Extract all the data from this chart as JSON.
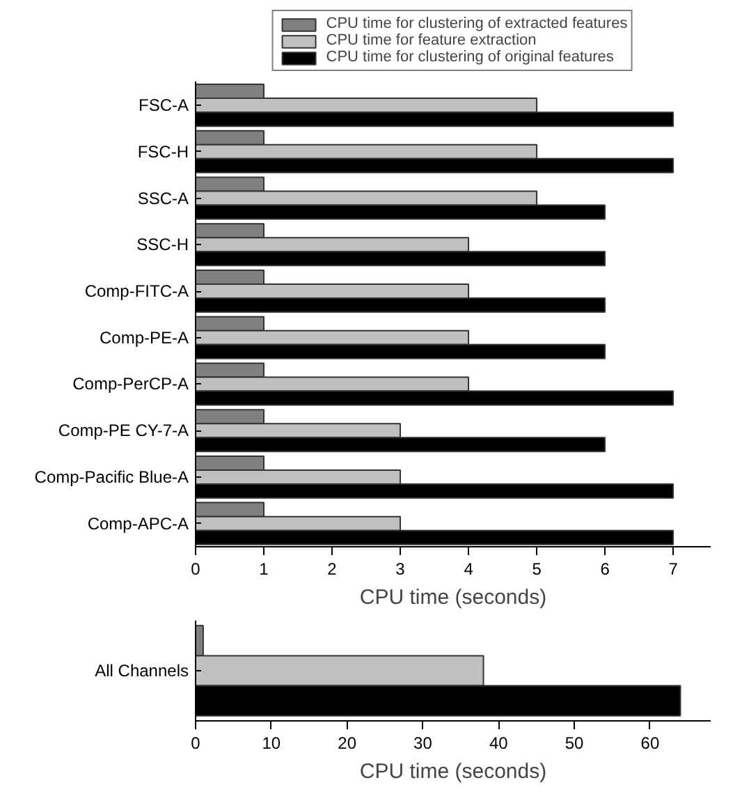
{
  "chart_data": [
    {
      "type": "bar",
      "orientation": "horizontal",
      "categories": [
        "FSC-A",
        "FSC-H",
        "SSC-A",
        "SSC-H",
        "Comp-FITC-A",
        "Comp-PE-A",
        "Comp-PerCP-A",
        "Comp-PE CY-7-A",
        "Comp-Pacific Blue-A",
        "Comp-APC-A"
      ],
      "xlabel": "CPU time (seconds)",
      "xlim": [
        0,
        7.55
      ],
      "xticks": [
        0,
        1,
        2,
        3,
        4,
        5,
        6,
        7
      ],
      "legend": "top",
      "grid": false,
      "series": [
        {
          "name": "CPU time for clustering of extracted features",
          "color": "#808080",
          "values": [
            1,
            1,
            1,
            1,
            1,
            1,
            1,
            1,
            1,
            1
          ]
        },
        {
          "name": "CPU time for feature extraction",
          "color": "#c0c0c0",
          "values": [
            5,
            5,
            5,
            4,
            4,
            4,
            4,
            3,
            3,
            3
          ]
        },
        {
          "name": "CPU time for clustering of original features",
          "color": "#000000",
          "values": [
            7,
            7,
            6,
            6,
            6,
            6,
            7,
            6,
            7,
            7
          ]
        }
      ]
    },
    {
      "type": "bar",
      "orientation": "horizontal",
      "categories": [
        "All Channels"
      ],
      "xlabel": "CPU time (seconds)",
      "xlim": [
        0,
        68
      ],
      "xticks": [
        0,
        10,
        20,
        30,
        40,
        50,
        60
      ],
      "grid": false,
      "series": [
        {
          "color": "#808080",
          "values": [
            1
          ]
        },
        {
          "color": "#c0c0c0",
          "values": [
            38
          ]
        },
        {
          "color": "#000000",
          "values": [
            64
          ]
        }
      ]
    }
  ]
}
